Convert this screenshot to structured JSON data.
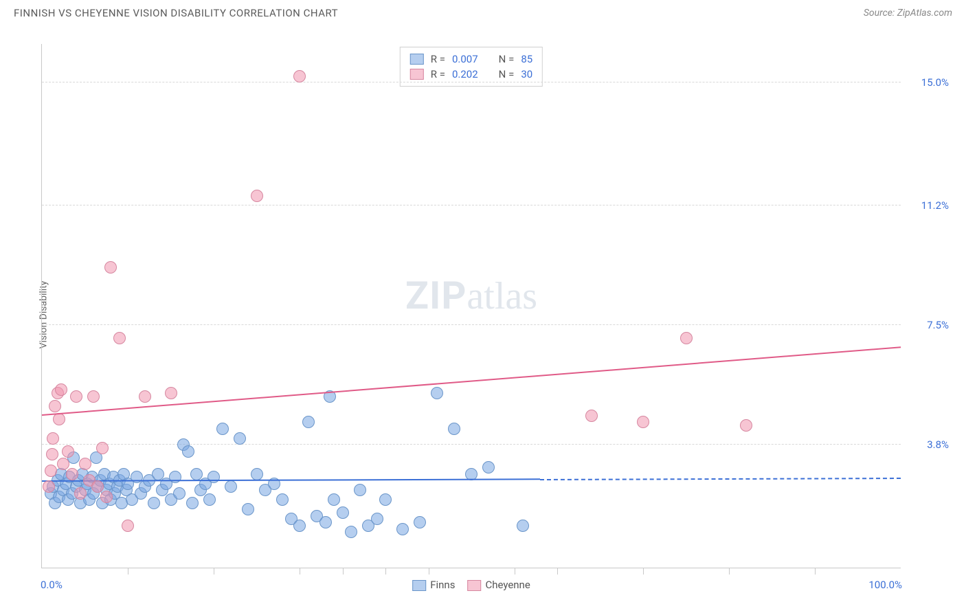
{
  "title": "FINNISH VS CHEYENNE VISION DISABILITY CORRELATION CHART",
  "source_prefix": "Source: ",
  "source": "ZipAtlas.com",
  "ylabel": "Vision Disability",
  "watermark_zip": "ZIP",
  "watermark_atlas": "atlas",
  "chart": {
    "type": "scatter",
    "xlim": [
      0,
      100
    ],
    "ylim": [
      0,
      16.2
    ],
    "x_min_label": "0.0%",
    "x_max_label": "100.0%",
    "xtick_positions": [
      10,
      20,
      30,
      35,
      40,
      45,
      55,
      60,
      70,
      80,
      90
    ],
    "yticks": [
      {
        "value": 3.8,
        "label": "3.8%"
      },
      {
        "value": 7.5,
        "label": "7.5%"
      },
      {
        "value": 11.2,
        "label": "11.2%"
      },
      {
        "value": 15.0,
        "label": "15.0%"
      }
    ],
    "grid_color": "#d8d8d8",
    "background_color": "#ffffff",
    "series": [
      {
        "name": "Finns",
        "fill": "rgba(120,165,225,0.55)",
        "stroke": "#6a95c9",
        "line_color": "#3b6fd6",
        "trend": {
          "x1": 0,
          "y1": 2.65,
          "x2_solid": 58,
          "x2": 100,
          "y2": 2.75
        },
        "r_label": "R =",
        "r_value": "0.007",
        "n_label": "N =",
        "n_value": "85",
        "points": [
          [
            1.0,
            2.3
          ],
          [
            1.3,
            2.5
          ],
          [
            1.5,
            2.0
          ],
          [
            1.8,
            2.7
          ],
          [
            2.0,
            2.2
          ],
          [
            2.2,
            2.9
          ],
          [
            2.5,
            2.4
          ],
          [
            2.8,
            2.6
          ],
          [
            3.0,
            2.1
          ],
          [
            3.2,
            2.8
          ],
          [
            3.5,
            2.3
          ],
          [
            3.7,
            3.4
          ],
          [
            4.0,
            2.5
          ],
          [
            4.2,
            2.7
          ],
          [
            4.5,
            2.0
          ],
          [
            4.7,
            2.9
          ],
          [
            5.0,
            2.4
          ],
          [
            5.3,
            2.6
          ],
          [
            5.5,
            2.1
          ],
          [
            5.8,
            2.8
          ],
          [
            6.0,
            2.3
          ],
          [
            6.3,
            3.4
          ],
          [
            6.5,
            2.5
          ],
          [
            6.8,
            2.7
          ],
          [
            7.0,
            2.0
          ],
          [
            7.3,
            2.9
          ],
          [
            7.5,
            2.4
          ],
          [
            7.8,
            2.6
          ],
          [
            8.0,
            2.1
          ],
          [
            8.3,
            2.8
          ],
          [
            8.5,
            2.3
          ],
          [
            8.8,
            2.5
          ],
          [
            9.0,
            2.7
          ],
          [
            9.3,
            2.0
          ],
          [
            9.5,
            2.9
          ],
          [
            9.8,
            2.4
          ],
          [
            10.0,
            2.6
          ],
          [
            10.5,
            2.1
          ],
          [
            11.0,
            2.8
          ],
          [
            11.5,
            2.3
          ],
          [
            12.0,
            2.5
          ],
          [
            12.5,
            2.7
          ],
          [
            13.0,
            2.0
          ],
          [
            13.5,
            2.9
          ],
          [
            14.0,
            2.4
          ],
          [
            14.5,
            2.6
          ],
          [
            15.0,
            2.1
          ],
          [
            15.5,
            2.8
          ],
          [
            16.0,
            2.3
          ],
          [
            16.5,
            3.8
          ],
          [
            17.0,
            3.6
          ],
          [
            17.5,
            2.0
          ],
          [
            18.0,
            2.9
          ],
          [
            18.5,
            2.4
          ],
          [
            19.0,
            2.6
          ],
          [
            19.5,
            2.1
          ],
          [
            20.0,
            2.8
          ],
          [
            21.0,
            4.3
          ],
          [
            22.0,
            2.5
          ],
          [
            23.0,
            4.0
          ],
          [
            24.0,
            1.8
          ],
          [
            25.0,
            2.9
          ],
          [
            26.0,
            2.4
          ],
          [
            27.0,
            2.6
          ],
          [
            28.0,
            2.1
          ],
          [
            29.0,
            1.5
          ],
          [
            30.0,
            1.3
          ],
          [
            31.0,
            4.5
          ],
          [
            32.0,
            1.6
          ],
          [
            33.0,
            1.4
          ],
          [
            33.5,
            5.3
          ],
          [
            34.0,
            2.1
          ],
          [
            35.0,
            1.7
          ],
          [
            36.0,
            1.1
          ],
          [
            37.0,
            2.4
          ],
          [
            38.0,
            1.3
          ],
          [
            39.0,
            1.5
          ],
          [
            40.0,
            2.1
          ],
          [
            42.0,
            1.2
          ],
          [
            44.0,
            1.4
          ],
          [
            46.0,
            5.4
          ],
          [
            48.0,
            4.3
          ],
          [
            50.0,
            2.9
          ],
          [
            52.0,
            3.1
          ],
          [
            56.0,
            1.3
          ]
        ]
      },
      {
        "name": "Cheyenne",
        "fill": "rgba(240,150,175,0.55)",
        "stroke": "#d6869f",
        "line_color": "#e05a87",
        "trend": {
          "x1": 0,
          "y1": 4.7,
          "x2_solid": 100,
          "x2": 100,
          "y2": 6.8
        },
        "r_label": "R =",
        "r_value": "0.202",
        "n_label": "N =",
        "n_value": "30",
        "points": [
          [
            0.8,
            2.5
          ],
          [
            1.0,
            3.0
          ],
          [
            1.2,
            3.5
          ],
          [
            1.3,
            4.0
          ],
          [
            1.5,
            5.0
          ],
          [
            1.8,
            5.4
          ],
          [
            2.0,
            4.6
          ],
          [
            2.2,
            5.5
          ],
          [
            2.5,
            3.2
          ],
          [
            3.0,
            3.6
          ],
          [
            3.5,
            2.9
          ],
          [
            4.0,
            5.3
          ],
          [
            4.5,
            2.3
          ],
          [
            5.0,
            3.2
          ],
          [
            5.5,
            2.7
          ],
          [
            6.0,
            5.3
          ],
          [
            6.5,
            2.5
          ],
          [
            7.0,
            3.7
          ],
          [
            7.5,
            2.2
          ],
          [
            8.0,
            9.3
          ],
          [
            9.0,
            7.1
          ],
          [
            10.0,
            1.3
          ],
          [
            12.0,
            5.3
          ],
          [
            15.0,
            5.4
          ],
          [
            25.0,
            11.5
          ],
          [
            30.0,
            15.2
          ],
          [
            64.0,
            4.7
          ],
          [
            70.0,
            4.5
          ],
          [
            75.0,
            7.1
          ],
          [
            82.0,
            4.4
          ]
        ]
      }
    ]
  }
}
